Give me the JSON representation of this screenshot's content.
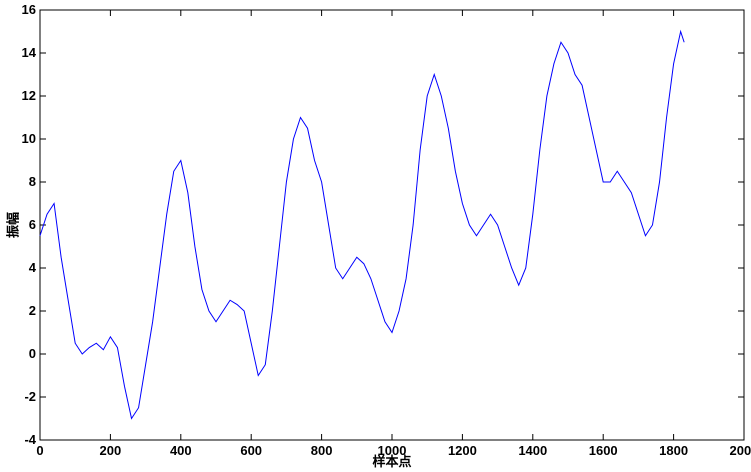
{
  "chart_data": {
    "type": "line",
    "xlabel": "样本点",
    "ylabel": "振幅",
    "x": [
      0,
      20,
      40,
      60,
      80,
      100,
      120,
      140,
      160,
      180,
      200,
      220,
      240,
      260,
      280,
      300,
      320,
      340,
      360,
      380,
      400,
      420,
      440,
      460,
      480,
      500,
      520,
      540,
      560,
      580,
      600,
      620,
      640,
      660,
      680,
      700,
      720,
      740,
      760,
      780,
      800,
      820,
      840,
      860,
      880,
      900,
      920,
      940,
      960,
      980,
      1000,
      1020,
      1040,
      1060,
      1080,
      1100,
      1120,
      1140,
      1160,
      1180,
      1200,
      1220,
      1240,
      1260,
      1280,
      1300,
      1320,
      1340,
      1360,
      1380,
      1400,
      1420,
      1440,
      1460,
      1480,
      1500,
      1520,
      1540,
      1560,
      1580,
      1600,
      1620,
      1640,
      1660,
      1680,
      1700,
      1720,
      1740,
      1760,
      1780,
      1800,
      1820,
      1830
    ],
    "series": [
      {
        "color": "#0000ff",
        "values": [
          5.5,
          6.5,
          7.0,
          4.5,
          2.5,
          0.5,
          0.0,
          0.3,
          0.5,
          0.2,
          0.8,
          0.3,
          -1.5,
          -3.0,
          -2.5,
          -0.5,
          1.5,
          4.0,
          6.5,
          8.5,
          9.0,
          7.5,
          5.0,
          3.0,
          2.0,
          1.5,
          2.0,
          2.5,
          2.3,
          2.0,
          0.5,
          -1.0,
          -0.5,
          2.0,
          5.0,
          8.0,
          10.0,
          11.0,
          10.5,
          9.0,
          8.0,
          6.0,
          4.0,
          3.5,
          4.0,
          4.5,
          4.2,
          3.5,
          2.5,
          1.5,
          1.0,
          2.0,
          3.5,
          6.0,
          9.5,
          12.0,
          13.0,
          12.0,
          10.5,
          8.5,
          7.0,
          6.0,
          5.5,
          6.0,
          6.5,
          6.0,
          5.0,
          4.0,
          3.2,
          4.0,
          6.5,
          9.5,
          12.0,
          13.5,
          14.5,
          14.0,
          13.0,
          12.5,
          11.0,
          9.5,
          8.0,
          8.0,
          8.5,
          8.0,
          7.5,
          6.5,
          5.5,
          6.0,
          8.0,
          11.0,
          13.5,
          15.0,
          14.5
        ]
      }
    ],
    "xlim": [
      0,
      2000
    ],
    "xticks": [
      0,
      200,
      400,
      600,
      800,
      1000,
      1200,
      1400,
      1600,
      1800,
      2000
    ],
    "ylim": [
      -4,
      16
    ],
    "yticks": [
      -4,
      -2,
      0,
      2,
      4,
      6,
      8,
      10,
      12,
      14,
      16
    ]
  }
}
